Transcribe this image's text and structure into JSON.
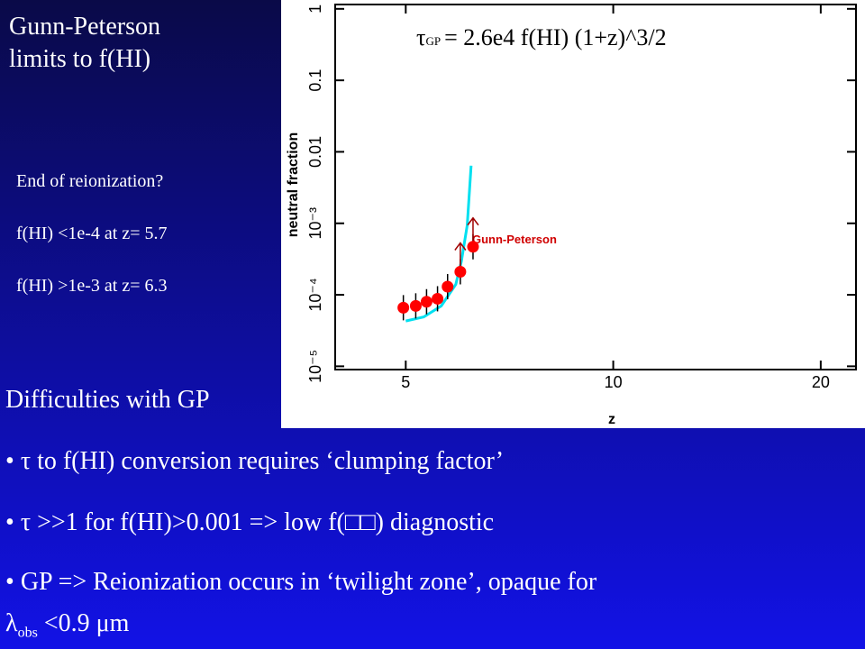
{
  "header": {
    "title": [
      "Gunn-Peterson",
      "limits to f(HI)"
    ]
  },
  "notes": [
    "End of reionization?",
    "f(HI) <1e-4 at z= 5.7",
    "f(HI) >1e-3 at z= 6.3"
  ],
  "section": "Difficulties with GP",
  "bullets": [
    {
      "symbol": "•",
      "text": "τ  to f(HI) conversion requires ‘clumping factor’"
    },
    {
      "symbol": "•",
      "text": "τ >>1 for f(HI)>0.001 => low f(□□) diagnostic"
    },
    {
      "symbol": "•",
      "text": "GP => Reionization occurs in ‘twilight zone’, opaque for",
      "cont": {
        "symbol": "λ",
        "subscript": "obs",
        "text": "<0.9 μm"
      }
    }
  ],
  "chart_data": {
    "type": "scatter",
    "xlabel": "z",
    "ylabel": "neutral fraction",
    "formula": {
      "symbol": "τ",
      "subscript": "GP",
      "text": "= 2.6e4 f(HI) (1+z)^3/2"
    },
    "annotation": "Gunn-Peterson",
    "xscale": "log",
    "yscale": "log",
    "xlim": [
      3.95,
      22.5
    ],
    "ylim": [
      9e-06,
      1.15
    ],
    "xticks": [
      5,
      10,
      20
    ],
    "yticks": [
      1,
      0.1,
      0.01,
      {
        "value": 0.001,
        "label": "10⁻³"
      },
      {
        "value": 0.0001,
        "label": "10⁻⁴"
      },
      {
        "value": 1e-05,
        "label": "10⁻⁵"
      }
    ],
    "series": [
      {
        "color": "#00e0f0",
        "style": "line",
        "x": [
          5.0,
          5.31,
          5.63,
          5.91,
          6.02,
          6.14,
          6.22
        ],
        "values": [
          4.3e-05,
          4.9e-05,
          7e-05,
          0.00014,
          0.00029,
          0.00094,
          0.0064
        ]
      },
      {
        "color": "#ff0000",
        "style": "points",
        "x": [
          4.96,
          5.17,
          5.36,
          5.56,
          5.75,
          6.0,
          6.26
        ],
        "values": [
          6.6e-05,
          7e-05,
          8e-05,
          8.8e-05,
          0.00013,
          0.00021,
          0.00047
        ]
      }
    ]
  }
}
